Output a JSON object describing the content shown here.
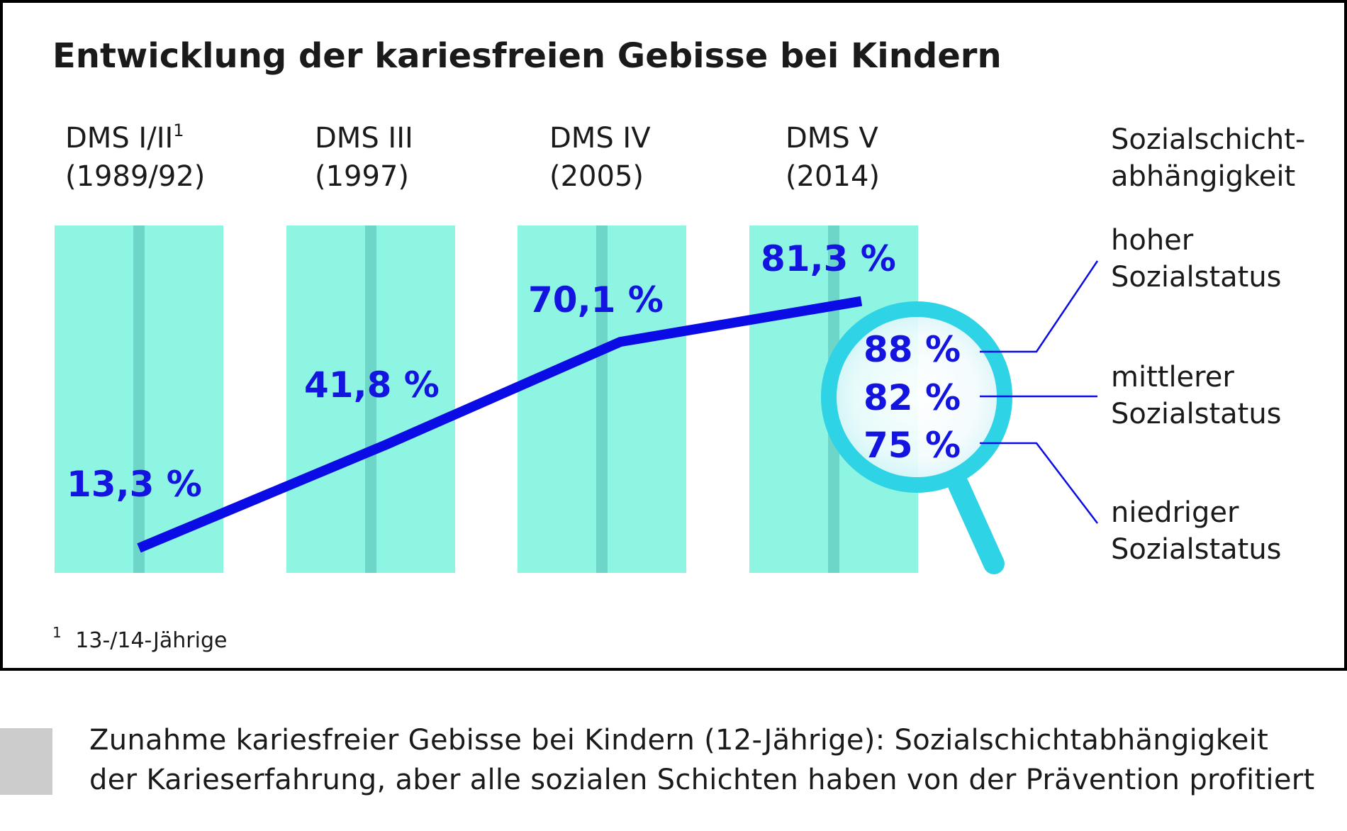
{
  "chart_data": {
    "type": "line",
    "title": "Entwicklung der kariesfreien Gebisse bei Kindern",
    "categories": [
      {
        "name": "DMS I/II",
        "footnote_marker": "1",
        "year": "(1989/92)"
      },
      {
        "name": "DMS III",
        "footnote_marker": "",
        "year": "(1997)"
      },
      {
        "name": "DMS IV",
        "footnote_marker": "",
        "year": "(2005)"
      },
      {
        "name": "DMS V",
        "footnote_marker": "",
        "year": "(2014)"
      }
    ],
    "values": [
      13.3,
      41.8,
      70.1,
      81.3
    ],
    "value_labels": [
      "13,3 %",
      "41,8 %",
      "70,1 %",
      "81,3 %"
    ],
    "ylim": [
      0,
      100
    ],
    "social_status": {
      "heading_line1": "Sozialschicht-",
      "heading_line2": "abhängigkeit",
      "items": [
        {
          "value": 88,
          "label": "88 %",
          "line1": "hoher",
          "line2": "Sozialstatus"
        },
        {
          "value": 82,
          "label": "82 %",
          "line1": "mittlerer",
          "line2": "Sozialstatus"
        },
        {
          "value": 75,
          "label": "75 %",
          "line1": "niedriger",
          "line2": "Sozialstatus"
        }
      ]
    },
    "footnote": {
      "marker": "1",
      "text": "13-/14-Jährige"
    }
  },
  "colors": {
    "bar": "#8ff5e3",
    "bar_stripe": "#6dd6c8",
    "line": "#0b0be6",
    "label": "#1414e0",
    "magnifier": "#2fd3e6",
    "text": "#1a1a1a",
    "frame": "#000000",
    "caption_box": "#cccccc"
  },
  "caption": {
    "line1": "Zunahme kariesfreier Gebisse bei Kindern (12-Jährige): Sozialschichtabhängigkeit",
    "line2": "der Karieserfahrung, aber alle sozialen Schichten haben von der Prävention profitiert"
  }
}
